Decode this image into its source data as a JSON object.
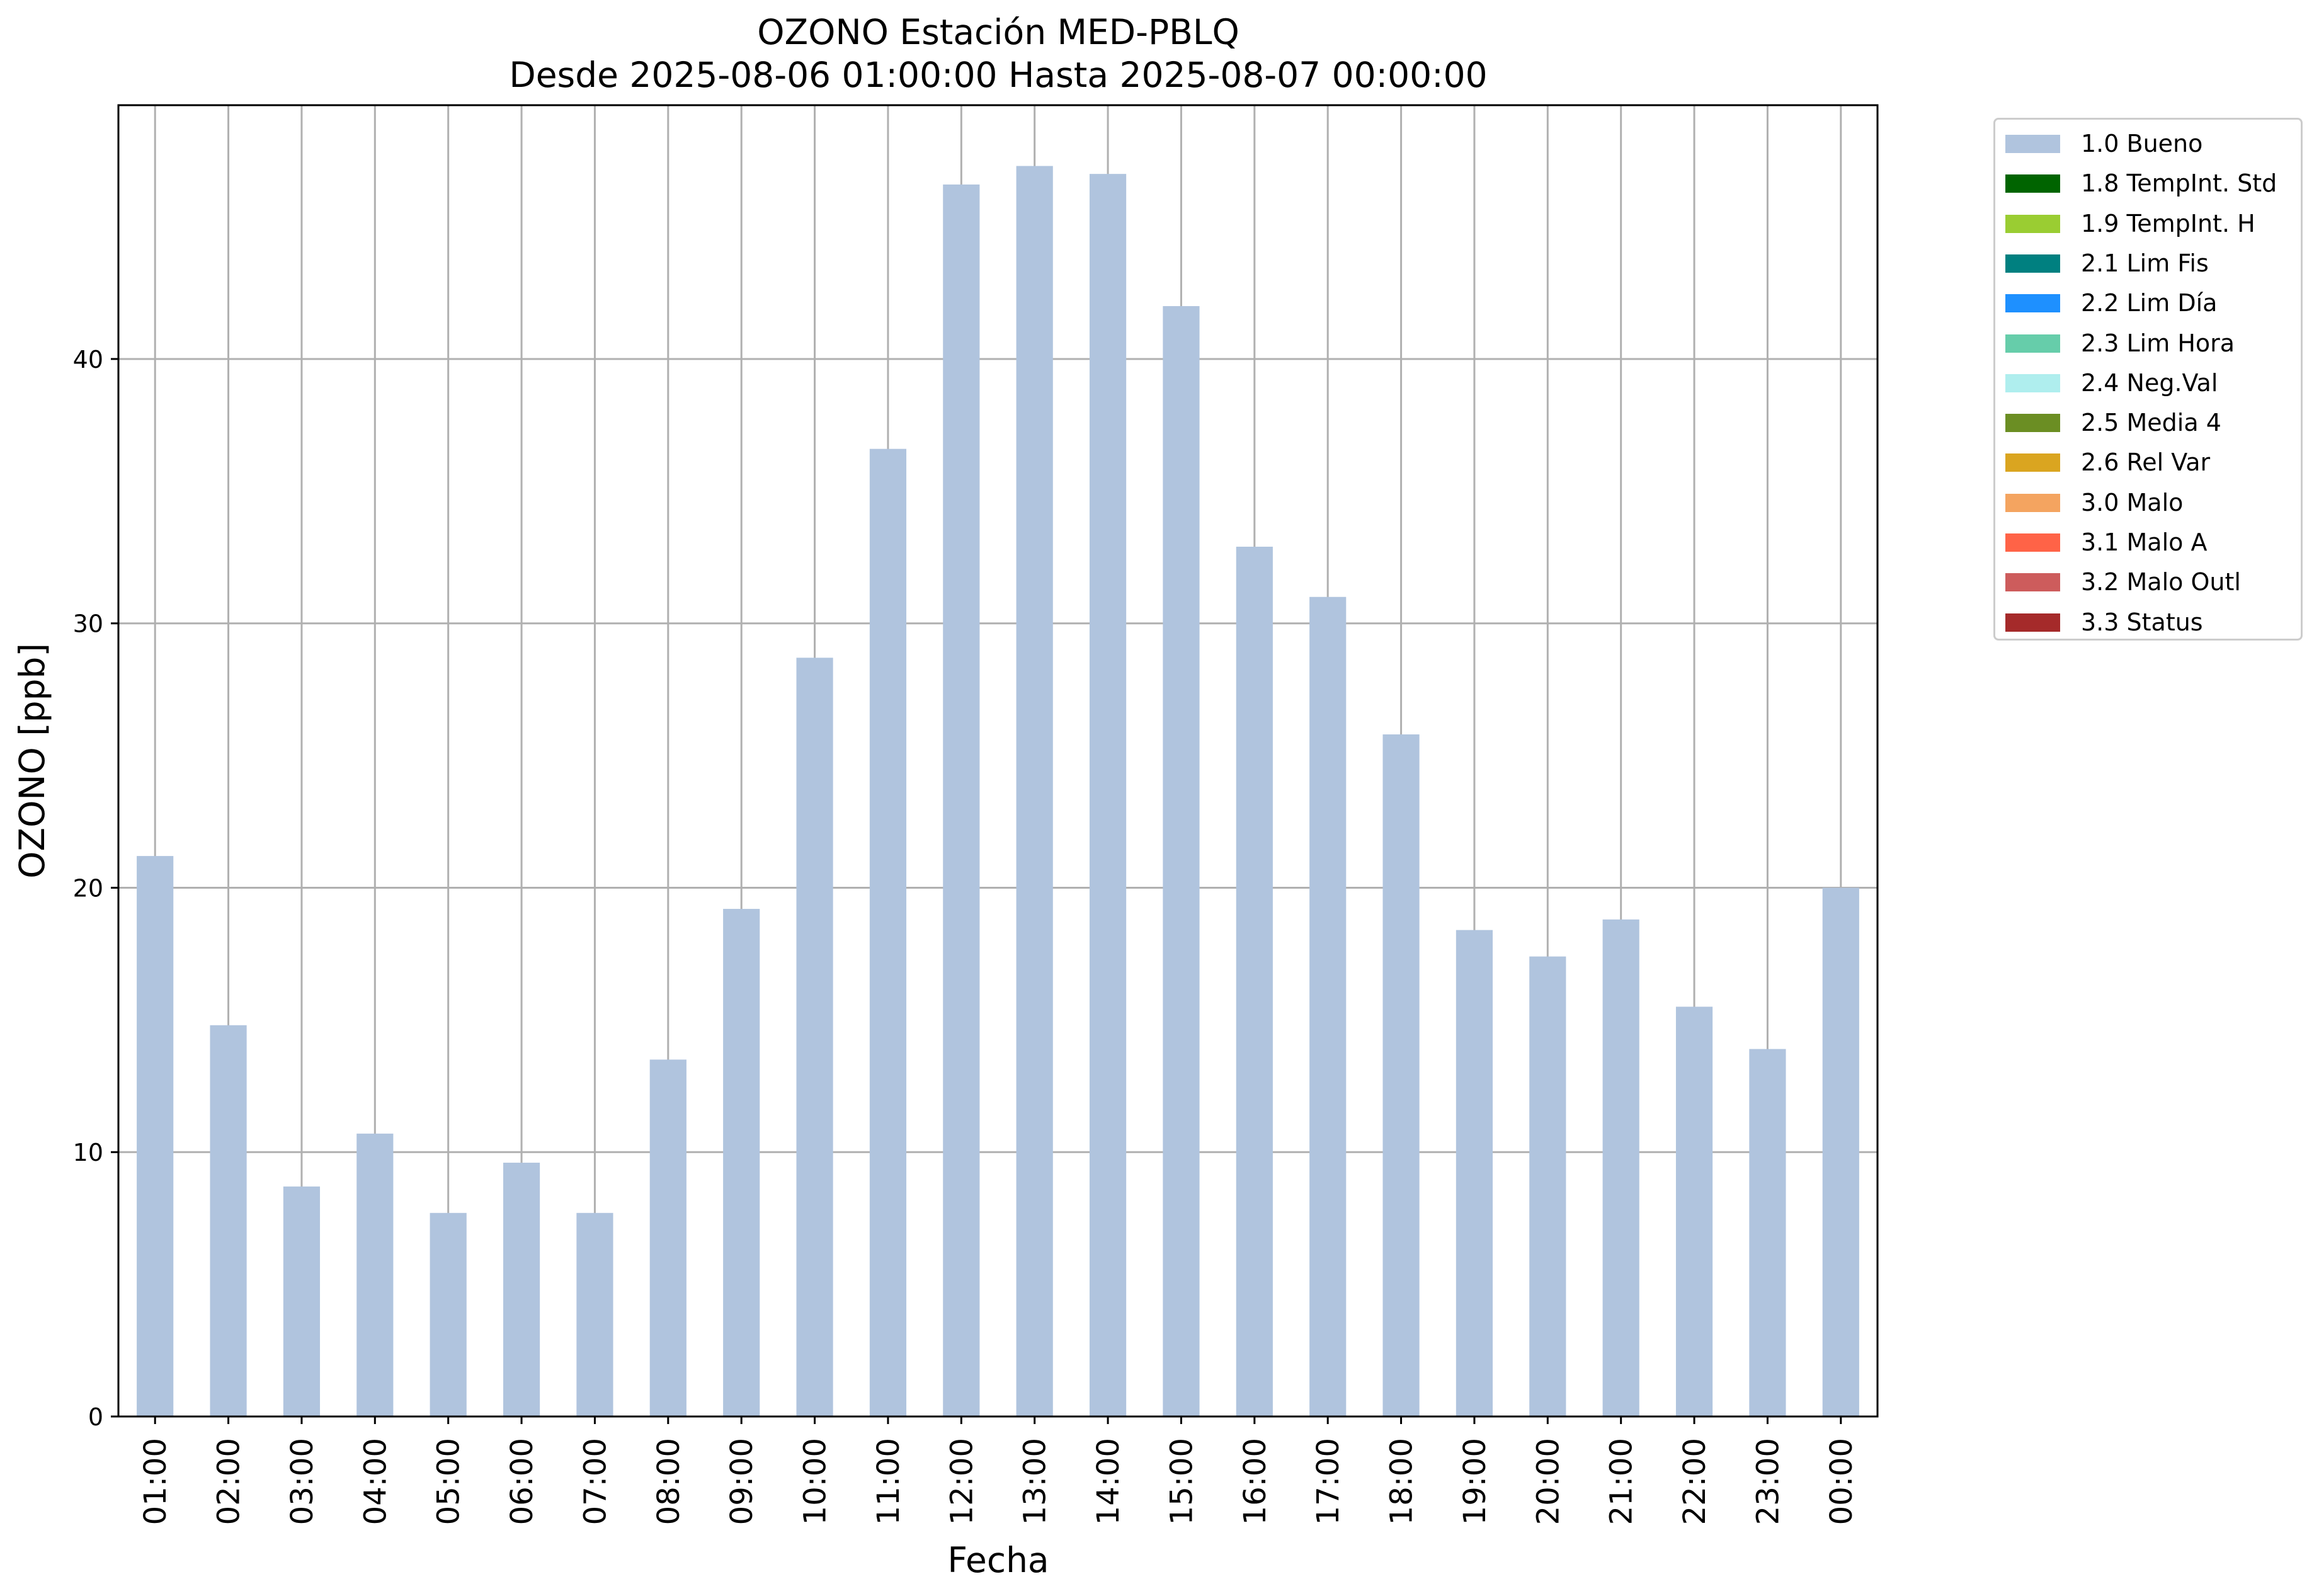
{
  "chart_data": {
    "type": "bar",
    "title": "OZONO Estación MED-PBLQ",
    "subtitle": "Desde 2025-08-06 01:00:00 Hasta 2025-08-07 00:00:00",
    "xlabel": "Fecha",
    "ylabel": "OZONO [ppb]",
    "ylim": [
      0,
      49.6
    ],
    "yticks": [
      0,
      10,
      20,
      30,
      40
    ],
    "grid": true,
    "legend_position": "outside-right",
    "bar_color": "#b0c4de",
    "categories": [
      "01:00",
      "02:00",
      "03:00",
      "04:00",
      "05:00",
      "06:00",
      "07:00",
      "08:00",
      "09:00",
      "10:00",
      "11:00",
      "12:00",
      "13:00",
      "14:00",
      "15:00",
      "16:00",
      "17:00",
      "18:00",
      "19:00",
      "20:00",
      "21:00",
      "22:00",
      "23:00",
      "00:00"
    ],
    "series": [
      {
        "name": "1.0 Bueno",
        "color": "#b0c4de",
        "values": [
          21.2,
          14.8,
          8.7,
          10.7,
          7.7,
          9.6,
          7.7,
          13.5,
          19.2,
          28.7,
          36.6,
          46.6,
          47.3,
          47.0,
          42.0,
          32.9,
          31.0,
          25.8,
          18.4,
          17.4,
          18.8,
          15.5,
          13.9,
          20.0
        ]
      }
    ],
    "legend": [
      {
        "label": "1.0 Bueno",
        "color": "#b0c4de"
      },
      {
        "label": "1.8 TempInt. Std",
        "color": "#006400"
      },
      {
        "label": "1.9 TempInt. H",
        "color": "#9acd32"
      },
      {
        "label": "2.1 Lim Fis",
        "color": "#008080"
      },
      {
        "label": "2.2 Lim Día",
        "color": "#1e90ff"
      },
      {
        "label": "2.3 Lim Hora",
        "color": "#66cdaa"
      },
      {
        "label": "2.4 Neg.Val",
        "color": "#afeeee"
      },
      {
        "label": "2.5 Media 4",
        "color": "#6b8e23"
      },
      {
        "label": "2.6 Rel Var",
        "color": "#daa520"
      },
      {
        "label": "3.0 Malo",
        "color": "#f4a460"
      },
      {
        "label": "3.1 Malo A",
        "color": "#ff6347"
      },
      {
        "label": "3.2 Malo Outl",
        "color": "#cd5c5c"
      },
      {
        "label": "3.3 Status",
        "color": "#a52a2a"
      }
    ]
  }
}
